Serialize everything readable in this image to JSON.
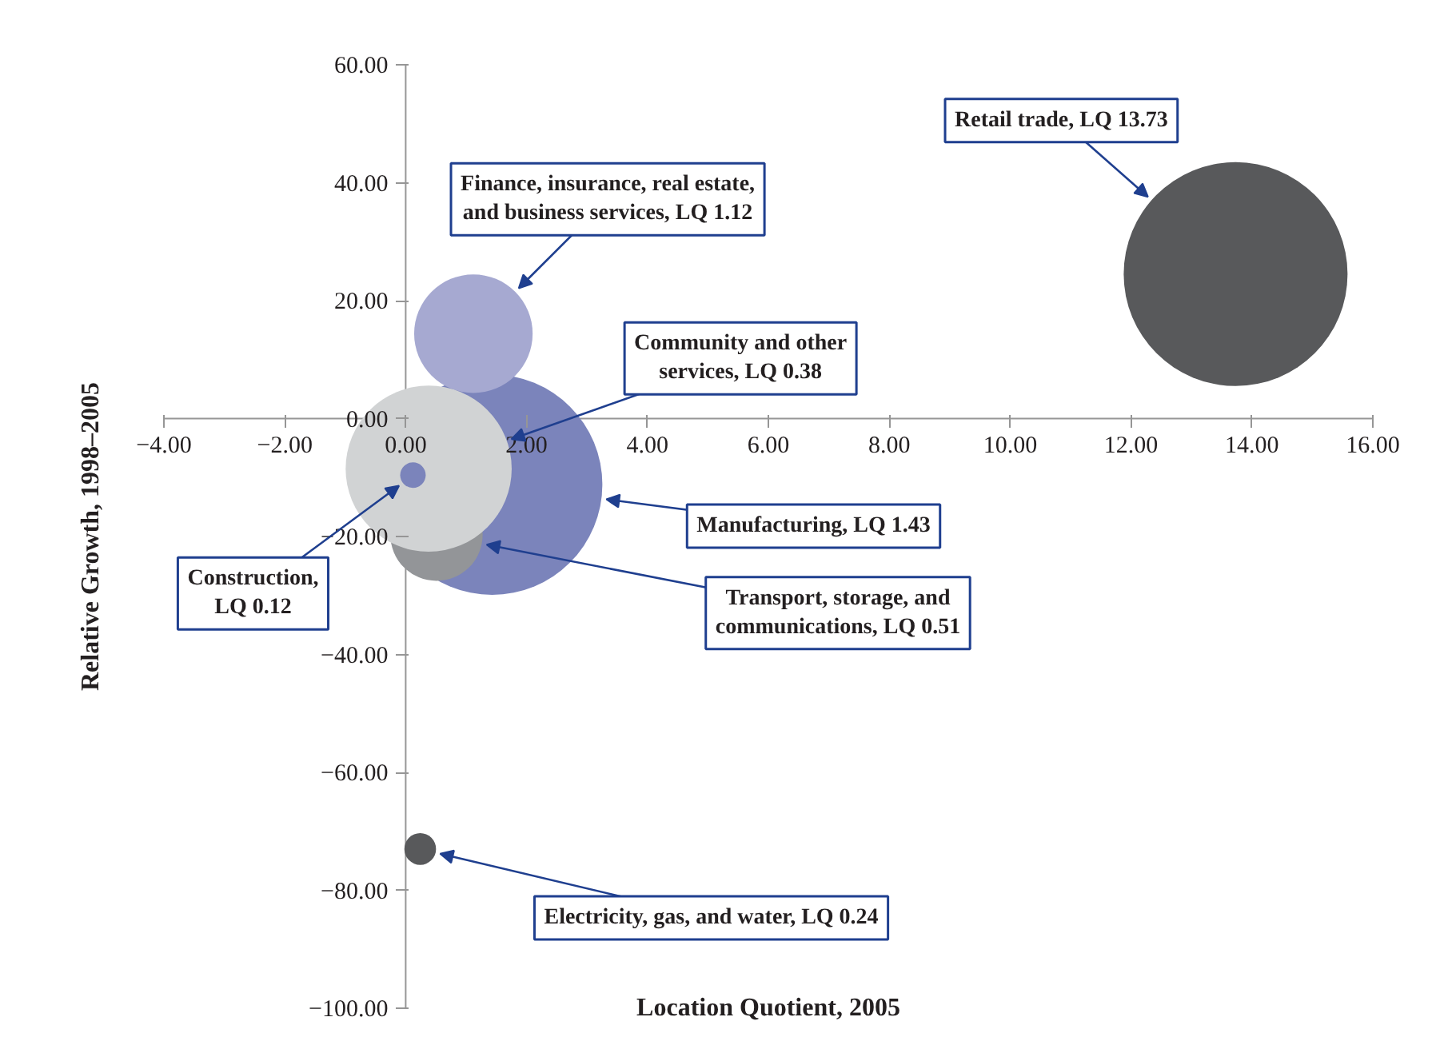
{
  "chart_data": {
    "type": "bubble",
    "xlabel": "Location Quotient, 2005",
    "ylabel": "Relative Growth, 1998–2005",
    "x": [
      13.73,
      1.43,
      1.12,
      0.51,
      0.38,
      0.12,
      0.24
    ],
    "values": [
      24.5,
      -11.2,
      14.4,
      -19.7,
      -8.5,
      -9.6,
      -73
    ],
    "sizes": [
      1,
      0.97,
      0.28,
      0.17,
      0.55,
      0.013,
      0.02
    ],
    "colors": [
      "#58595b",
      "#7b84bb",
      "#a6a9d1",
      "#939598",
      "#d1d3d4",
      "#7b84bb",
      "#58595b"
    ],
    "annotations": [
      {
        "text": "Retail trade, LQ 13.73",
        "x": 12.28,
        "y": 37.6
      },
      {
        "text": "Manufacturing, LQ 1.43",
        "x": 3.32,
        "y": -13.7
      },
      {
        "text": "Finance, insurance, real estate,\nand business services, LQ 1.12",
        "x": 1.87,
        "y": 22.1
      },
      {
        "text": "Transport, storage, and\ncommunications, LQ 0.51",
        "x": 1.34,
        "y": -21.4
      },
      {
        "text": "Community and other\nservices, LQ 0.38",
        "x": 1.75,
        "y": -3.5
      },
      {
        "text": "Construction,\nLQ 0.12",
        "x": -0.11,
        "y": -11.4
      },
      {
        "text": "Electricity, gas, and water, LQ 0.24",
        "x": 0.57,
        "y": -73.8
      }
    ],
    "xlim": [
      -4,
      16
    ],
    "xticks": [
      {
        "value": -4,
        "label": "−4.00"
      },
      {
        "value": -2,
        "label": "−2.00"
      },
      {
        "value": 0,
        "label": "0.00"
      },
      {
        "value": 2,
        "label": "2.00"
      },
      {
        "value": 4,
        "label": "4.00"
      },
      {
        "value": 6,
        "label": "6.00"
      },
      {
        "value": 8,
        "label": "8.00"
      },
      {
        "value": 10,
        "label": "10.00"
      },
      {
        "value": 12,
        "label": "12.00"
      },
      {
        "value": 14,
        "label": "14.00"
      },
      {
        "value": 16,
        "label": "16.00"
      }
    ],
    "ylim": [
      -100,
      60
    ],
    "yticks": [
      {
        "value": -100,
        "label": "−100.00"
      },
      {
        "value": -80,
        "label": "−80.00"
      },
      {
        "value": -60,
        "label": "−60.00"
      },
      {
        "value": -40,
        "label": "−40.00"
      },
      {
        "value": -20,
        "label": "−20.00"
      },
      {
        "value": 0,
        "label": "0.00"
      },
      {
        "value": 20,
        "label": "20.00"
      },
      {
        "value": 40,
        "label": "40.00"
      },
      {
        "value": 60,
        "label": "60.00"
      }
    ],
    "grid": false
  }
}
